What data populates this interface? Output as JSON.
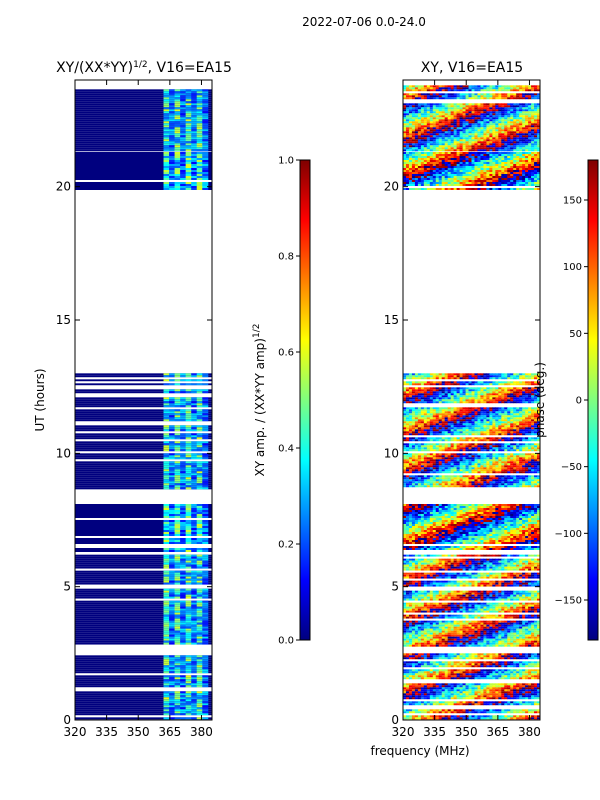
{
  "figure_title": "2022-07-06 0.0-24.0",
  "shared_xlabel": "frequency (MHz)",
  "colors": {
    "jet": [
      "#00007f",
      "#0000ff",
      "#007fff",
      "#00ffff",
      "#7fff7f",
      "#ffff00",
      "#ff7f00",
      "#ff0000",
      "#7f0000"
    ],
    "empty_row": "#ffffff"
  },
  "chart_data": [
    {
      "type": "heatmap",
      "title_main": "XY/(XX*YY)",
      "title_sup": "1/2",
      "title_tail": ", V16=EA15",
      "xlabel": "",
      "ylabel": "UT (hours)",
      "xlim": [
        320,
        385
      ],
      "ylim": [
        0,
        24
      ],
      "xticks": [
        320,
        335,
        350,
        365,
        380
      ],
      "xtick_labels": [
        "320",
        "335",
        "350",
        "365",
        "380"
      ],
      "yticks": [
        0,
        5,
        10,
        15,
        20
      ],
      "ytick_labels": [
        "0",
        "5",
        "10",
        "15",
        "20"
      ],
      "colorbar": {
        "label_main": "XY amp. / (XX*YY amp)",
        "label_sup": "1/2",
        "range": [
          0.0,
          1.0
        ],
        "ticks": [
          0.0,
          0.2,
          0.4,
          0.6,
          0.8,
          1.0
        ],
        "tick_labels": [
          "0.0",
          "0.2",
          "0.4",
          "0.6",
          "0.8",
          "1.0"
        ]
      },
      "background_value": 0.0,
      "highlight_freq_range_mhz": [
        362,
        383
      ],
      "highlight_values": [
        0.2,
        0.6
      ],
      "data_time_ranges_hours": [
        [
          0.0,
          2.5
        ],
        [
          2.8,
          6.2
        ],
        [
          6.3,
          8.1
        ],
        [
          8.7,
          13.0
        ],
        [
          19.9,
          21.3
        ],
        [
          21.4,
          23.8
        ]
      ]
    },
    {
      "type": "heatmap",
      "title": "XY, V16=EA15",
      "xlabel": "",
      "ylabel": "",
      "xlim": [
        320,
        385
      ],
      "ylim": [
        0,
        24
      ],
      "xticks": [
        320,
        335,
        350,
        365,
        380
      ],
      "xtick_labels": [
        "320",
        "335",
        "350",
        "365",
        "380"
      ],
      "yticks": [
        0,
        5,
        10,
        15,
        20
      ],
      "ytick_labels": [
        "0",
        "5",
        "10",
        "15",
        "20"
      ],
      "colorbar": {
        "label": "phase (deg.)",
        "range": [
          -180,
          180
        ],
        "ticks": [
          -150,
          -100,
          -50,
          0,
          50,
          100,
          150
        ],
        "tick_labels": [
          "−150",
          "−100",
          "−50",
          "0",
          "50",
          "100",
          "150"
        ]
      },
      "value_range_deg": [
        -180,
        180
      ],
      "data_time_ranges_hours": [
        [
          0.0,
          2.5
        ],
        [
          2.8,
          6.2
        ],
        [
          6.3,
          8.1
        ],
        [
          8.7,
          13.0
        ],
        [
          19.9,
          21.3
        ],
        [
          21.4,
          23.8
        ]
      ]
    }
  ]
}
